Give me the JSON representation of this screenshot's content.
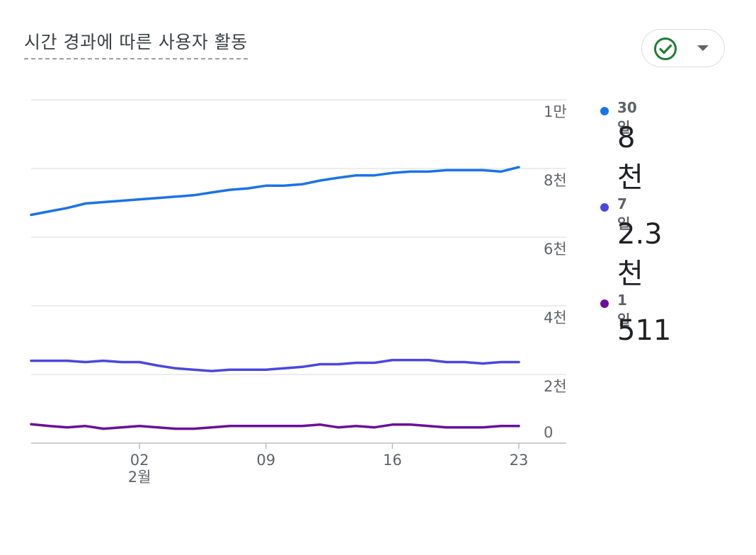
{
  "card": {
    "title": "시간 경과에 따른 사용자 활동",
    "status_icon": "check-circle-icon",
    "dropdown_icon": "caret-down-icon",
    "colors": {
      "check": "#1e7e34",
      "grid": "#e0e0e0"
    }
  },
  "legend": [
    {
      "name": "30일",
      "value": "8천",
      "color": "#1a73e8"
    },
    {
      "name": "7일",
      "value": "2.3천",
      "color": "#4a47e0"
    },
    {
      "name": "1일",
      "value": "511",
      "color": "#6a0f9e"
    }
  ],
  "chart_data": {
    "type": "line",
    "x_ticks": [
      {
        "index": 6,
        "label": "02",
        "sublabel": "2월"
      },
      {
        "index": 13,
        "label": "09",
        "sublabel": ""
      },
      {
        "index": 20,
        "label": "16",
        "sublabel": ""
      },
      {
        "index": 27,
        "label": "23",
        "sublabel": ""
      }
    ],
    "y_ticks": [
      {
        "value": 0,
        "label": "0"
      },
      {
        "value": 2000,
        "label": "2천"
      },
      {
        "value": 4000,
        "label": "4천"
      },
      {
        "value": 6000,
        "label": "6천"
      },
      {
        "value": 8000,
        "label": "8천"
      },
      {
        "value": 10000,
        "label": "1만"
      }
    ],
    "ylim": [
      0,
      10000
    ],
    "x_count": 28,
    "grid": true,
    "legend_position": "right",
    "series": [
      {
        "name": "30일",
        "color": "#1a73e8",
        "values": [
          6650,
          6750,
          6850,
          6980,
          7020,
          7060,
          7100,
          7140,
          7180,
          7220,
          7300,
          7380,
          7420,
          7500,
          7500,
          7540,
          7650,
          7730,
          7800,
          7800,
          7870,
          7910,
          7910,
          7950,
          7950,
          7950,
          7910,
          8040
        ]
      },
      {
        "name": "7일",
        "color": "#4a47e0",
        "values": [
          2400,
          2400,
          2400,
          2360,
          2400,
          2360,
          2360,
          2260,
          2180,
          2140,
          2100,
          2140,
          2140,
          2140,
          2180,
          2220,
          2300,
          2300,
          2340,
          2340,
          2420,
          2420,
          2420,
          2360,
          2360,
          2320,
          2360,
          2360
        ]
      },
      {
        "name": "1일",
        "color": "#6a0f9e",
        "values": [
          550,
          500,
          460,
          500,
          420,
          460,
          500,
          460,
          420,
          420,
          460,
          500,
          500,
          500,
          500,
          500,
          540,
          460,
          500,
          460,
          540,
          540,
          500,
          460,
          460,
          460,
          500,
          500
        ]
      }
    ]
  }
}
